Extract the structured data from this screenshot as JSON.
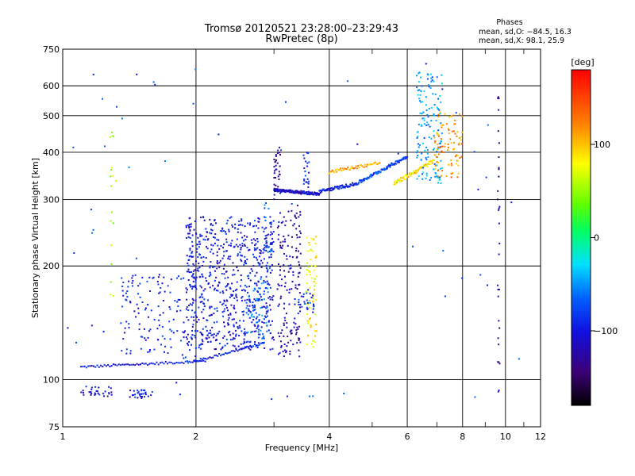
{
  "chart_data": {
    "type": "scatter",
    "title": "Tromsø 20120521 23:28:00–23:29:43",
    "subtitle": "RwPretec (8p)",
    "xlabel": "Frequency [MHz]",
    "ylabel": "Stationary phase Virtual Height [km]",
    "x_scale": "log",
    "y_scale": "log",
    "xlim": [
      1,
      12
    ],
    "ylim": [
      75,
      750
    ],
    "x_ticks": [
      1,
      2,
      4,
      6,
      8,
      10,
      12
    ],
    "x_tick_labels": [
      "1",
      "2",
      "4",
      "6",
      "8",
      "10",
      "12"
    ],
    "y_ticks": [
      75,
      100,
      200,
      300,
      400,
      500,
      600,
      750
    ],
    "y_tick_labels": [
      "75",
      "100",
      "200",
      "300",
      "400",
      "500",
      "600",
      "750"
    ],
    "grid": true,
    "stats": {
      "heading": "Phases",
      "line_o": "mean, sd,O: −84.5, 16.3",
      "line_x": "mean, sd,X:  98.1, 25.9"
    },
    "colorbar": {
      "label": "[deg]",
      "range": [
        -180,
        180
      ],
      "ticks": [
        100,
        0,
        -100
      ],
      "tick_labels": [
        "100",
        "0",
        "−100"
      ],
      "colormap": "rainbow (black–purple–blue–cyan–green–yellow–red)"
    },
    "series": [
      {
        "shape": "trace",
        "x_range": [
          1.1,
          2.1
        ],
        "y_range": [
          108,
          112
        ],
        "phase": -100,
        "n": 70,
        "spread": 0.015
      },
      {
        "shape": "trace",
        "x_range": [
          2.0,
          2.85
        ],
        "y_range": [
          112,
          125
        ],
        "phase": -95,
        "n": 45,
        "spread": 0.015
      },
      {
        "shape": "blob",
        "x_range": [
          1.9,
          3.0
        ],
        "y_range": [
          120,
          270
        ],
        "phase": -100,
        "n": 700
      },
      {
        "shape": "blob",
        "x_range": [
          1.35,
          2.0
        ],
        "y_range": [
          112,
          190
        ],
        "phase": -98,
        "n": 150
      },
      {
        "shape": "blob",
        "x_range": [
          2.6,
          2.9
        ],
        "y_range": [
          125,
          190
        ],
        "phase": -60,
        "n": 60
      },
      {
        "shape": "blob",
        "x_range": [
          3.05,
          3.45
        ],
        "y_range": [
          115,
          290
        ],
        "phase": -120,
        "n": 160
      },
      {
        "shape": "blob",
        "x_range": [
          3.55,
          3.75
        ],
        "y_range": [
          120,
          240
        ],
        "phase": 80,
        "n": 70
      },
      {
        "shape": "blob",
        "x_range": [
          3.4,
          3.7
        ],
        "y_range": [
          150,
          170
        ],
        "phase": -80,
        "n": 25
      },
      {
        "shape": "trace",
        "x_range": [
          3.0,
          3.8
        ],
        "y_range": [
          318,
          310
        ],
        "phase": -110,
        "n": 130,
        "spread": 0.018
      },
      {
        "shape": "trace",
        "x_range": [
          3.8,
          4.6
        ],
        "y_range": [
          315,
          330
        ],
        "phase": -95,
        "n": 70,
        "spread": 0.02
      },
      {
        "shape": "trace",
        "x_range": [
          4.6,
          6.0
        ],
        "y_range": [
          330,
          390
        ],
        "phase": -80,
        "n": 90,
        "spread": 0.02
      },
      {
        "shape": "trace",
        "x_range": [
          4.0,
          5.2
        ],
        "y_range": [
          355,
          375
        ],
        "phase": 110,
        "n": 50,
        "spread": 0.02
      },
      {
        "shape": "trace",
        "x_range": [
          5.6,
          6.9
        ],
        "y_range": [
          330,
          380
        ],
        "phase": 90,
        "n": 70,
        "spread": 0.025
      },
      {
        "shape": "blob",
        "x_range": [
          6.3,
          7.2
        ],
        "y_range": [
          330,
          660
        ],
        "phase": -50,
        "n": 140
      },
      {
        "shape": "blob",
        "x_range": [
          6.9,
          8.0
        ],
        "y_range": [
          340,
          520
        ],
        "phase": 115,
        "n": 90
      },
      {
        "shape": "column",
        "x_range": [
          3.0,
          3.1
        ],
        "y_range": [
          300,
          420
        ],
        "phase": -130,
        "n": 35
      },
      {
        "shape": "column",
        "x_range": [
          3.5,
          3.6
        ],
        "y_range": [
          310,
          400
        ],
        "phase": -90,
        "n": 25
      },
      {
        "shape": "column",
        "x_range": [
          2.85,
          2.95
        ],
        "y_range": [
          170,
          300
        ],
        "phase": -70,
        "n": 30
      },
      {
        "shape": "column",
        "x_range": [
          1.28,
          1.32
        ],
        "y_range": [
          150,
          460
        ],
        "phase": 60,
        "n": 18
      },
      {
        "shape": "column",
        "x_range": [
          9.6,
          9.7
        ],
        "y_range": [
          90,
          610
        ],
        "phase": -130,
        "n": 30
      },
      {
        "shape": "blob",
        "x_range": [
          1.1,
          1.3
        ],
        "y_range": [
          90,
          96
        ],
        "phase": -110,
        "n": 30
      },
      {
        "shape": "blob",
        "x_range": [
          1.4,
          1.6
        ],
        "y_range": [
          89,
          94
        ],
        "phase": -100,
        "n": 30
      },
      {
        "shape": "scatter",
        "x_range": [
          1.0,
          11.0
        ],
        "y_range": [
          85,
          700
        ],
        "phase": -80,
        "n": 60
      }
    ]
  }
}
